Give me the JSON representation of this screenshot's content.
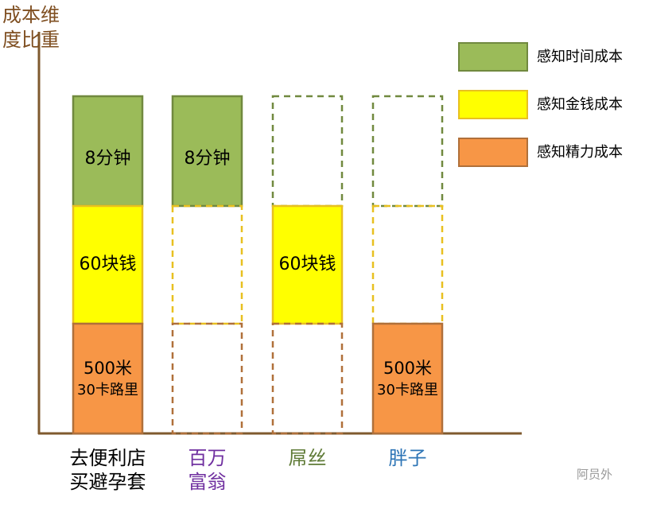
{
  "y_axis_label": [
    "成本维",
    "度比重"
  ],
  "legend": [
    {
      "label": "感知时间成本",
      "color": "#9bbb59",
      "border": "#71893f"
    },
    {
      "label": "感知金钱成本",
      "color": "#ffff00",
      "border": "#e8c020"
    },
    {
      "label": "感知精力成本",
      "color": "#f79646",
      "border": "#b0703a"
    }
  ],
  "columns": [
    {
      "label": [
        "去便利店",
        "买避孕套"
      ],
      "label_color": "#000000",
      "cells": [
        {
          "filled": true,
          "text": [
            "8分钟"
          ]
        },
        {
          "filled": true,
          "text": [
            "60块钱"
          ]
        },
        {
          "filled": true,
          "text": [
            "500米",
            "30卡路里"
          ]
        }
      ]
    },
    {
      "label": [
        "百万",
        "富翁"
      ],
      "label_color": "#7030a0",
      "cells": [
        {
          "filled": true,
          "text": [
            "8分钟"
          ]
        },
        {
          "filled": false
        },
        {
          "filled": false
        }
      ]
    },
    {
      "label": [
        "屌丝"
      ],
      "label_color": "#5e7a35",
      "cells": [
        {
          "filled": false
        },
        {
          "filled": true,
          "text": [
            "60块钱"
          ]
        },
        {
          "filled": false
        }
      ]
    },
    {
      "label": [
        "胖子"
      ],
      "label_color": "#2e75b6",
      "cells": [
        {
          "filled": false
        },
        {
          "filled": false
        },
        {
          "filled": true,
          "text": [
            "500米",
            "30卡路里"
          ]
        }
      ]
    }
  ],
  "watermark": "阿员外"
}
